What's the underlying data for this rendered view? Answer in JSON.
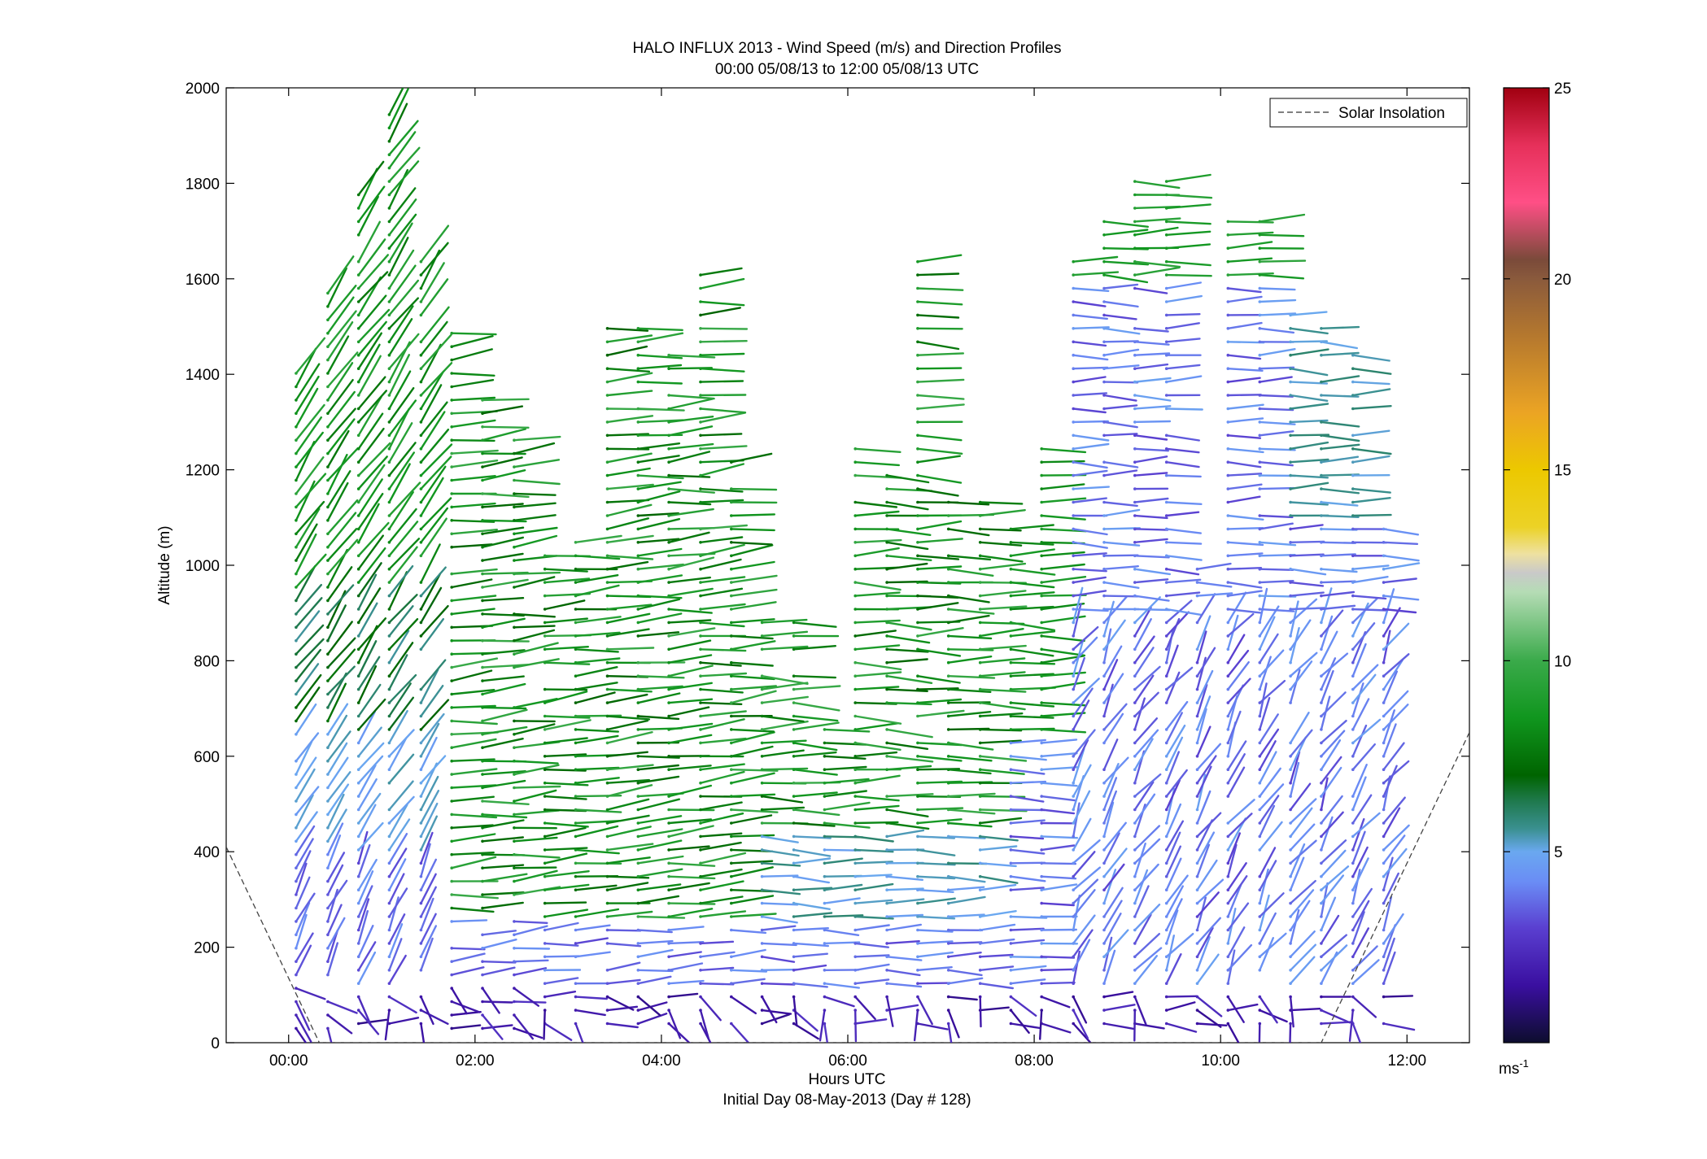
{
  "chart_data": {
    "type": "wind-barb-profile",
    "title": "HALO INFLUX 2013 - Wind Speed (m/s) and Direction Profiles",
    "subtitle": "00:00 05/08/13 to 12:00 05/08/13  UTC",
    "xlabel": "Hours UTC",
    "xlabel2": "Initial Day 08-May-2013 (Day # 128)",
    "ylabel": "Altitude (m)",
    "xlim": [
      -0.67,
      12.67
    ],
    "ylim": [
      0,
      2000
    ],
    "xticks": [
      {
        "value": 0,
        "label": "00:00"
      },
      {
        "value": 2,
        "label": "02:00"
      },
      {
        "value": 4,
        "label": "04:00"
      },
      {
        "value": 6,
        "label": "06:00"
      },
      {
        "value": 8,
        "label": "08:00"
      },
      {
        "value": 10,
        "label": "10:00"
      },
      {
        "value": 12,
        "label": "12:00"
      }
    ],
    "yticks": [
      0,
      200,
      400,
      600,
      800,
      1000,
      1200,
      1400,
      1600,
      1800,
      2000
    ],
    "legend": {
      "label": "Solar Insolation",
      "position": "top-right",
      "style": "dashed"
    },
    "colorbar": {
      "label": "ms",
      "label_exponent": "-1",
      "range": [
        0,
        25
      ],
      "ticks": [
        5,
        10,
        15,
        20,
        25
      ],
      "stops": [
        {
          "v": 0,
          "c": "#0d0d2e"
        },
        {
          "v": 1.5,
          "c": "#3a0fa0"
        },
        {
          "v": 3,
          "c": "#5a3fd0"
        },
        {
          "v": 4.2,
          "c": "#6a8cf5"
        },
        {
          "v": 5,
          "c": "#6aa8f0"
        },
        {
          "v": 5.6,
          "c": "#3a9090"
        },
        {
          "v": 6.3,
          "c": "#207a50"
        },
        {
          "v": 7,
          "c": "#006400"
        },
        {
          "v": 8.5,
          "c": "#10961e"
        },
        {
          "v": 10,
          "c": "#3aaa4a"
        },
        {
          "v": 11.8,
          "c": "#b5dcb5"
        },
        {
          "v": 12.3,
          "c": "#c9c9c9"
        },
        {
          "v": 12.8,
          "c": "#eee1a0"
        },
        {
          "v": 13.5,
          "c": "#ecd226"
        },
        {
          "v": 15,
          "c": "#ecc800"
        },
        {
          "v": 16.5,
          "c": "#eba424"
        },
        {
          "v": 18.5,
          "c": "#b5782e"
        },
        {
          "v": 20,
          "c": "#8a5a3c"
        },
        {
          "v": 20.5,
          "c": "#7a4a3a"
        },
        {
          "v": 22,
          "c": "#ff4f86"
        },
        {
          "v": 23.5,
          "c": "#e6305a"
        },
        {
          "v": 25,
          "c": "#a00010"
        }
      ]
    },
    "solar_insolation": [
      {
        "x": -0.67,
        "y": 410
      },
      {
        "x": 0.33,
        "y": 0
      },
      {
        "x": 11.08,
        "y": 0
      },
      {
        "x": 12.67,
        "y": 650
      }
    ],
    "profiles": [
      {
        "t": 0.08,
        "z0": 30,
        "z1": 1410,
        "dz": 28
      },
      {
        "t": 0.42,
        "z0": 30,
        "z1": 1590,
        "dz": 28
      },
      {
        "t": 0.75,
        "z0": 40,
        "z1": 1820,
        "dz": 28
      },
      {
        "t": 1.08,
        "z0": 40,
        "z1": 1950,
        "dz": 28
      },
      {
        "t": 1.42,
        "z0": 40,
        "z1": 1660,
        "dz": 28
      },
      {
        "t": 1.75,
        "z0": 30,
        "z1": 1500,
        "dz": 28
      },
      {
        "t": 2.08,
        "z0": 30,
        "z1": 1360,
        "dz": 28
      },
      {
        "t": 2.42,
        "z0": 30,
        "z1": 1270,
        "dz": 28
      },
      {
        "t": 2.75,
        "z0": 40,
        "z1": 1020,
        "dz": 28
      },
      {
        "t": 3.08,
        "z0": 40,
        "z1": 1060,
        "dz": 28
      },
      {
        "t": 3.42,
        "z0": 40,
        "z1": 1500,
        "dz": 28
      },
      {
        "t": 3.75,
        "z0": 40,
        "z1": 1510,
        "dz": 28
      },
      {
        "t": 4.08,
        "z0": 40,
        "z1": 1450,
        "dz": 28
      },
      {
        "t": 4.42,
        "z0": 40,
        "z1": 1610,
        "dz": 28
      },
      {
        "t": 4.75,
        "z0": 40,
        "z1": 1220,
        "dz": 28
      },
      {
        "t": 5.08,
        "z0": 40,
        "z1": 900,
        "dz": 28
      },
      {
        "t": 5.42,
        "z0": 40,
        "z1": 900,
        "dz": 28
      },
      {
        "t": 5.75,
        "z0": 40,
        "z1": 660,
        "dz": 28
      },
      {
        "t": 6.08,
        "z0": 40,
        "z1": 1260,
        "dz": 28
      },
      {
        "t": 6.42,
        "z0": 40,
        "z1": 1190,
        "dz": 28
      },
      {
        "t": 6.75,
        "z0": 40,
        "z1": 1650,
        "dz": 28
      },
      {
        "t": 7.08,
        "z0": 40,
        "z1": 1150,
        "dz": 28
      },
      {
        "t": 7.42,
        "z0": 40,
        "z1": 1150,
        "dz": 28
      },
      {
        "t": 7.75,
        "z0": 40,
        "z1": 1080,
        "dz": 28
      },
      {
        "t": 8.08,
        "z0": 40,
        "z1": 1250,
        "dz": 28
      },
      {
        "t": 8.42,
        "z0": 40,
        "z1": 1640,
        "dz": 28
      },
      {
        "t": 8.75,
        "z0": 40,
        "z1": 1720,
        "dz": 28
      },
      {
        "t": 9.08,
        "z0": 40,
        "z1": 1820,
        "dz": 28
      },
      {
        "t": 9.42,
        "z0": 40,
        "z1": 1820,
        "dz": 28
      },
      {
        "t": 9.75,
        "z0": 40,
        "z1": 1000,
        "dz": 28
      },
      {
        "t": 10.08,
        "z0": 40,
        "z1": 1720,
        "dz": 28
      },
      {
        "t": 10.42,
        "z0": 40,
        "z1": 1740,
        "dz": 28
      },
      {
        "t": 10.75,
        "z0": 40,
        "z1": 1530,
        "dz": 28
      },
      {
        "t": 11.08,
        "z0": 40,
        "z1": 1520,
        "dz": 28
      },
      {
        "t": 11.42,
        "z0": 40,
        "z1": 1440,
        "dz": 28
      },
      {
        "t": 11.75,
        "z0": 40,
        "z1": 1100,
        "dz": 28
      }
    ]
  }
}
